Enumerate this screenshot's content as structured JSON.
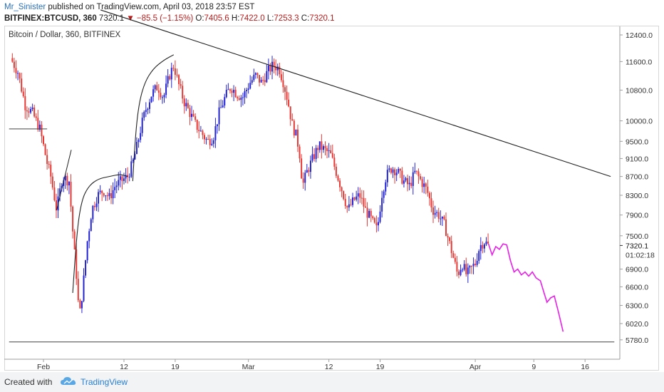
{
  "header": {
    "author": "Mr_Sinister",
    "published": " published on TradingView.com, April 03, 2018 23:57 EST",
    "symbol": "BITFINEX:BTCUSD, 360",
    "last": "7320.1",
    "change": "−85.5 (−1.15%)",
    "o_label": "O:",
    "o": "7405.6",
    "h_label": "H:",
    "h": "7422.0",
    "l_label": "L:",
    "l": "7253.3",
    "c_label": "C:",
    "c": "7320.1"
  },
  "footer": {
    "created": "Created with",
    "brand": "TradingView"
  },
  "colors": {
    "up": "#2323d6",
    "down": "#e53935",
    "projection": "#e620e6",
    "trend": "#222222"
  },
  "chart_data": {
    "type": "candlestick",
    "title": "Bitcoin / Dollar, 360, BITFINEX",
    "scale": "log",
    "x_ticks": [
      {
        "label": "Feb",
        "day": 32
      },
      {
        "label": "12",
        "day": 43
      },
      {
        "label": "19",
        "day": 50
      },
      {
        "label": "Mar",
        "day": 60
      },
      {
        "label": "12",
        "day": 71
      },
      {
        "label": "19",
        "day": 78
      },
      {
        "label": "Apr",
        "day": 91
      },
      {
        "label": "9",
        "day": 99
      },
      {
        "label": "16",
        "day": 106
      }
    ],
    "y_ticks": [
      12400,
      11600,
      10800,
      10000,
      9500,
      9100,
      8700,
      8300,
      7900,
      7500,
      6900,
      6600,
      6300,
      6020,
      5780
    ],
    "ylim": [
      5700,
      12900
    ],
    "last_price": "7320.1",
    "countdown": "01:02:18",
    "close_path": [
      [
        27.5,
        11700
      ],
      [
        28.5,
        11300
      ],
      [
        29.5,
        10400
      ],
      [
        30.5,
        10200
      ],
      [
        31.5,
        9800
      ],
      [
        32.5,
        9000
      ],
      [
        33.0,
        8700
      ],
      [
        33.8,
        8000
      ],
      [
        34.6,
        8700
      ],
      [
        35.5,
        8600
      ],
      [
        36.1,
        7400
      ],
      [
        36.5,
        6800
      ],
      [
        36.9,
        6100
      ],
      [
        37.4,
        6600
      ],
      [
        38.0,
        7400
      ],
      [
        38.6,
        8000
      ],
      [
        39.4,
        8300
      ],
      [
        40.2,
        8400
      ],
      [
        41.0,
        8250
      ],
      [
        41.8,
        8500
      ],
      [
        42.6,
        8600
      ],
      [
        43.5,
        8700
      ],
      [
        44.2,
        9000
      ],
      [
        44.8,
        9400
      ],
      [
        45.4,
        9900
      ],
      [
        46.0,
        10300
      ],
      [
        46.8,
        10700
      ],
      [
        47.6,
        10900
      ],
      [
        48.4,
        10600
      ],
      [
        49.2,
        11200
      ],
      [
        49.8,
        11500
      ],
      [
        50.4,
        11000
      ],
      [
        51.2,
        10500
      ],
      [
        52.0,
        10200
      ],
      [
        52.8,
        9900
      ],
      [
        53.6,
        9700
      ],
      [
        54.4,
        9500
      ],
      [
        55.2,
        9600
      ],
      [
        56.0,
        10200
      ],
      [
        56.8,
        10600
      ],
      [
        57.6,
        10900
      ],
      [
        58.4,
        10700
      ],
      [
        59.2,
        10600
      ],
      [
        60.2,
        11000
      ],
      [
        61.0,
        11200
      ],
      [
        61.8,
        11000
      ],
      [
        62.6,
        11300
      ],
      [
        63.4,
        11500
      ],
      [
        64.2,
        11400
      ],
      [
        64.8,
        11000
      ],
      [
        65.4,
        10500
      ],
      [
        66.0,
        9900
      ],
      [
        66.6,
        9600
      ],
      [
        67.0,
        9200
      ],
      [
        67.4,
        8500
      ],
      [
        68.0,
        8800
      ],
      [
        68.8,
        9100
      ],
      [
        69.6,
        9400
      ],
      [
        70.4,
        9300
      ],
      [
        71.2,
        9200
      ],
      [
        72.0,
        8800
      ],
      [
        72.8,
        8400
      ],
      [
        73.6,
        8000
      ],
      [
        74.4,
        8200
      ],
      [
        75.2,
        8300
      ],
      [
        76.0,
        8000
      ],
      [
        76.8,
        7800
      ],
      [
        77.6,
        7600
      ],
      [
        78.2,
        8300
      ],
      [
        78.8,
        8700
      ],
      [
        79.6,
        8900
      ],
      [
        80.4,
        8800
      ],
      [
        81.2,
        8600
      ],
      [
        82.0,
        8500
      ],
      [
        82.8,
        8800
      ],
      [
        83.6,
        8600
      ],
      [
        84.4,
        8400
      ],
      [
        85.2,
        8000
      ],
      [
        86.0,
        7900
      ],
      [
        86.8,
        7700
      ],
      [
        87.4,
        7400
      ],
      [
        88.0,
        7100
      ],
      [
        88.6,
        6800
      ],
      [
        89.2,
        7000
      ],
      [
        89.8,
        6800
      ],
      [
        90.4,
        6900
      ],
      [
        91.0,
        7000
      ],
      [
        91.6,
        7300
      ],
      [
        92.2,
        7400
      ],
      [
        92.8,
        7320
      ]
    ],
    "projection": [
      [
        92.8,
        7350
      ],
      [
        93.3,
        7150
      ],
      [
        93.8,
        7300
      ],
      [
        94.3,
        7250
      ],
      [
        94.8,
        7350
      ],
      [
        95.3,
        7330
      ],
      [
        95.8,
        7050
      ],
      [
        96.3,
        6850
      ],
      [
        96.8,
        6900
      ],
      [
        97.3,
        6800
      ],
      [
        97.8,
        6850
      ],
      [
        98.3,
        6780
      ],
      [
        98.8,
        6850
      ],
      [
        99.3,
        6750
      ],
      [
        99.9,
        6700
      ],
      [
        100.4,
        6500
      ],
      [
        100.8,
        6350
      ],
      [
        101.3,
        6420
      ],
      [
        101.8,
        6450
      ],
      [
        102.4,
        6180
      ],
      [
        103.0,
        5900
      ]
    ],
    "trendline": [
      [
        39.8,
        13200
      ],
      [
        109.5,
        8700
      ]
    ],
    "horizontal_lines": [
      {
        "from": 27.3,
        "to": 32.5,
        "price": 9800
      },
      {
        "from": 27.3,
        "to": 110.0,
        "price": 5750
      }
    ],
    "arcs": [
      {
        "points": [
          [
            36.0,
            6500
          ],
          [
            36.5,
            7500
          ],
          [
            37.2,
            8200
          ],
          [
            38.2,
            8500
          ],
          [
            39.5,
            8650
          ],
          [
            41.0,
            8700
          ],
          [
            42.5,
            8750
          ],
          [
            43.5,
            8700
          ]
        ]
      },
      {
        "points": [
          [
            44.2,
            8600
          ],
          [
            44.5,
            9500
          ],
          [
            45.0,
            10400
          ],
          [
            45.8,
            11000
          ],
          [
            47.0,
            11400
          ],
          [
            48.5,
            11650
          ],
          [
            49.8,
            11800
          ]
        ]
      }
    ],
    "small_line": [
      [
        33.8,
        8000
      ],
      [
        35.8,
        9300
      ]
    ]
  }
}
